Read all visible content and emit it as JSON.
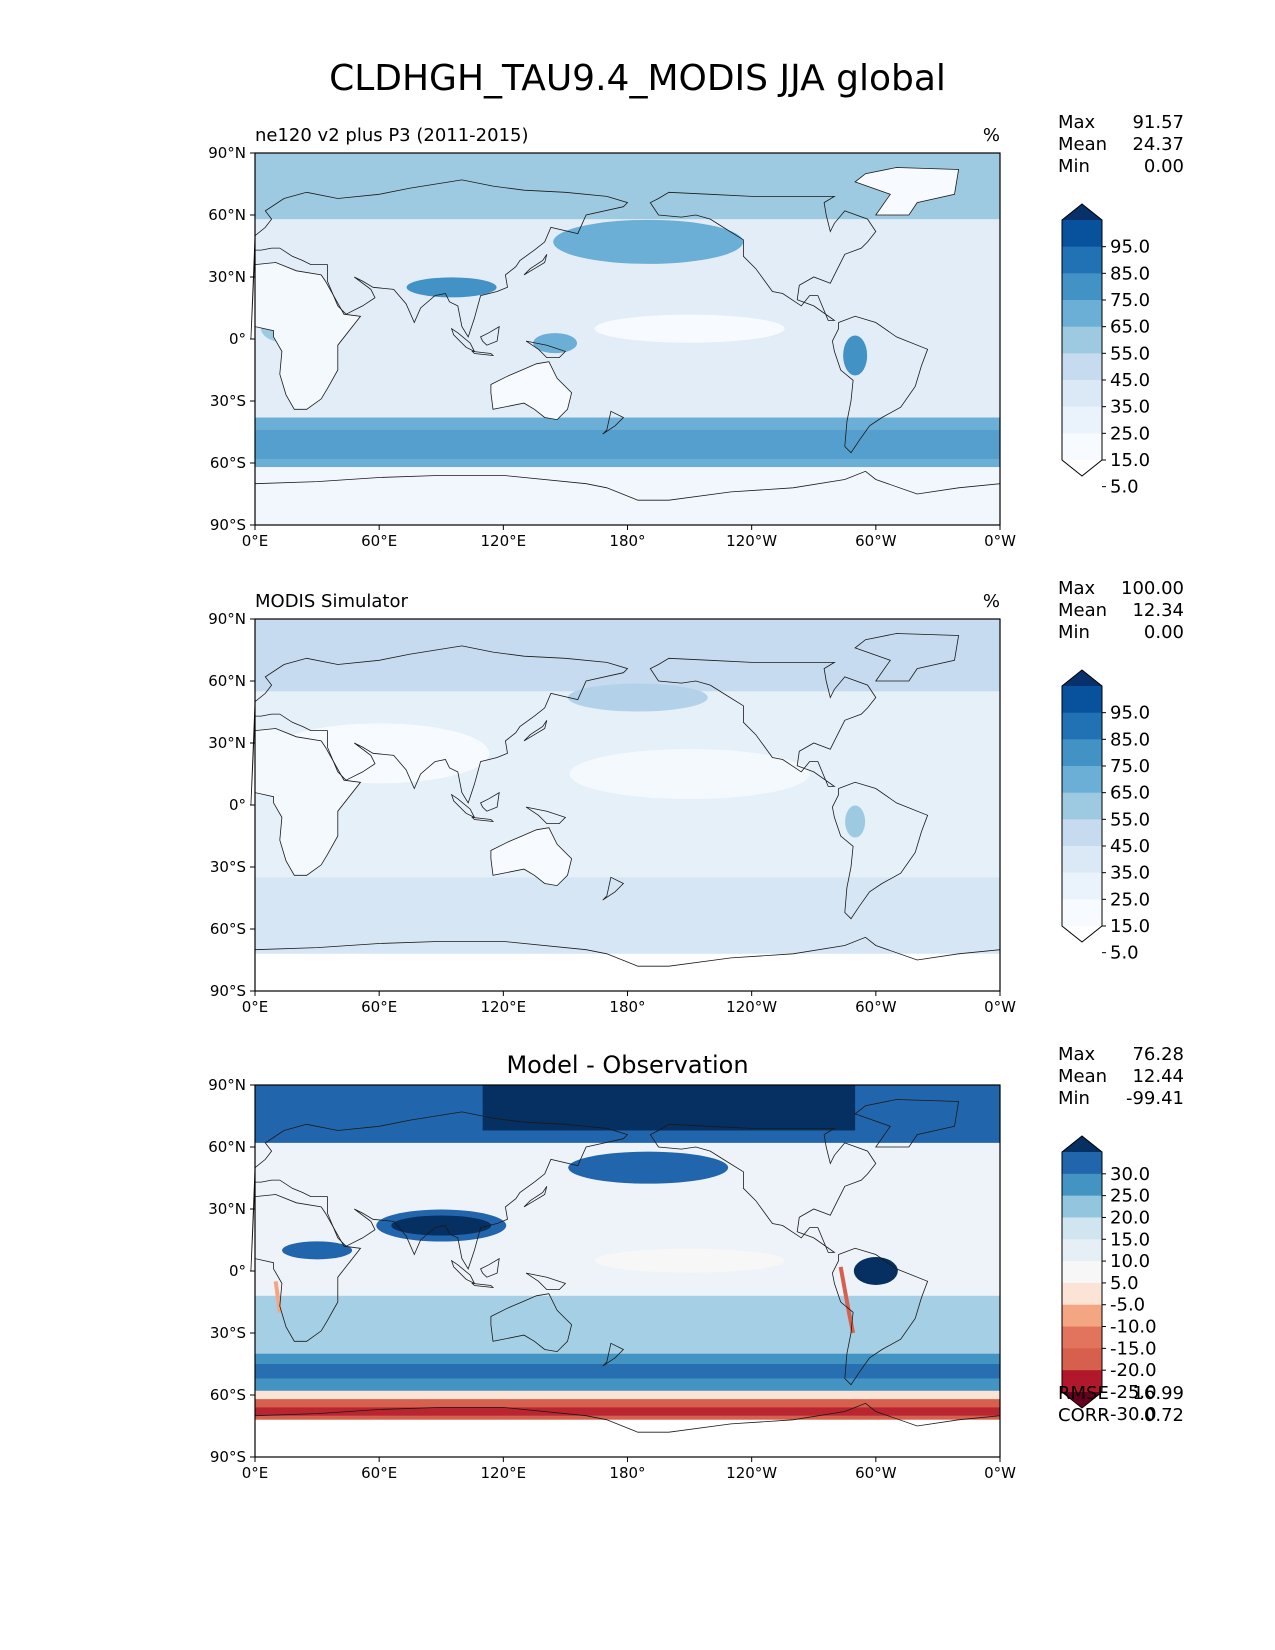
{
  "figure": {
    "title": "CLDHGH_TAU9.4_MODIS JJA global"
  },
  "x_ticks": [
    "0°E",
    "60°E",
    "120°E",
    "180°",
    "120°W",
    "60°W",
    "0°W"
  ],
  "y_ticks": [
    "90°N",
    "60°N",
    "30°N",
    "0°",
    "30°S",
    "60°S",
    "90°S"
  ],
  "panels": [
    {
      "left_title": "ne120 v2 plus P3 (2011-2015)",
      "center_title": "",
      "units": "%",
      "stats": [
        {
          "label": "Max",
          "value": "91.57"
        },
        {
          "label": "Mean",
          "value": "24.37"
        },
        {
          "label": "Min",
          "value": "0.00"
        }
      ],
      "colorbar_ticks": [
        "95.0",
        "85.0",
        "75.0",
        "65.0",
        "55.0",
        "45.0",
        "35.0",
        "25.0",
        "15.0",
        "5.0"
      ],
      "colorbar_colors": [
        "#08306b",
        "#08519c",
        "#2171b5",
        "#4292c6",
        "#6baed6",
        "#9ecae1",
        "#c6dbef",
        "#dbe9f6",
        "#eaf2fb",
        "#f7fbff",
        "#ffffff"
      ],
      "bottom_stats": []
    },
    {
      "left_title": "MODIS Simulator",
      "center_title": "",
      "units": "%",
      "stats": [
        {
          "label": "Max",
          "value": "100.00"
        },
        {
          "label": "Mean",
          "value": "12.34"
        },
        {
          "label": "Min",
          "value": "0.00"
        }
      ],
      "colorbar_ticks": [
        "95.0",
        "85.0",
        "75.0",
        "65.0",
        "55.0",
        "45.0",
        "35.0",
        "25.0",
        "15.0",
        "5.0"
      ],
      "colorbar_colors": [
        "#08306b",
        "#08519c",
        "#2171b5",
        "#4292c6",
        "#6baed6",
        "#9ecae1",
        "#c6dbef",
        "#dbe9f6",
        "#eaf2fb",
        "#f7fbff",
        "#ffffff"
      ],
      "bottom_stats": []
    },
    {
      "left_title": "",
      "center_title": "Model - Observation",
      "units": "",
      "stats": [
        {
          "label": "Max",
          "value": "76.28"
        },
        {
          "label": "Mean",
          "value": "12.44"
        },
        {
          "label": "Min",
          "value": "-99.41"
        }
      ],
      "colorbar_ticks": [
        "30.0",
        "25.0",
        "20.0",
        "15.0",
        "10.0",
        "5.0",
        "-5.0",
        "-10.0",
        "-15.0",
        "-20.0",
        "-25.0",
        "-30.0"
      ],
      "colorbar_colors": [
        "#053061",
        "#2166ac",
        "#4393c3",
        "#92c5de",
        "#d1e5f0",
        "#e7eff6",
        "#f7f7f7",
        "#fbe3d6",
        "#f4a582",
        "#e2735d",
        "#d6604d",
        "#b2182b",
        "#67001f"
      ],
      "bottom_stats": [
        {
          "label": "RMSE",
          "value": "16.99"
        },
        {
          "label": "CORR",
          "value": "0.72"
        }
      ]
    }
  ]
}
